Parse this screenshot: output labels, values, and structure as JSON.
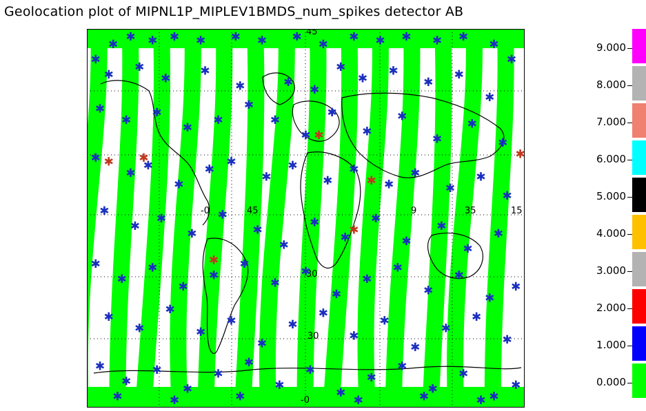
{
  "title": "Geolocation plot of MIPNL1P_MIPLEV1BMDS_num_spikes detector AB",
  "map": {
    "frame_color": "#000000",
    "background": "#ffffff",
    "track_color": "#00ff00",
    "spike_low_color": "#1a2fbf",
    "spike_high_color": "#c0381c",
    "grid_labels": [
      "45",
      "-0",
      "45",
      "9",
      "35",
      "15",
      "30",
      "30",
      "-0"
    ],
    "tracks_count": 14,
    "marker_symbol": "✱",
    "marks_low": [
      [
        0.02,
        0.08
      ],
      [
        0.06,
        0.04
      ],
      [
        0.1,
        0.02
      ],
      [
        0.15,
        0.03
      ],
      [
        0.2,
        0.02
      ],
      [
        0.26,
        0.03
      ],
      [
        0.34,
        0.02
      ],
      [
        0.4,
        0.03
      ],
      [
        0.48,
        0.02
      ],
      [
        0.54,
        0.04
      ],
      [
        0.61,
        0.02
      ],
      [
        0.67,
        0.03
      ],
      [
        0.73,
        0.02
      ],
      [
        0.8,
        0.03
      ],
      [
        0.86,
        0.02
      ],
      [
        0.93,
        0.04
      ],
      [
        0.97,
        0.08
      ],
      [
        0.05,
        0.12
      ],
      [
        0.12,
        0.1
      ],
      [
        0.18,
        0.13
      ],
      [
        0.27,
        0.11
      ],
      [
        0.35,
        0.15
      ],
      [
        0.46,
        0.14
      ],
      [
        0.52,
        0.16
      ],
      [
        0.58,
        0.1
      ],
      [
        0.63,
        0.13
      ],
      [
        0.7,
        0.11
      ],
      [
        0.78,
        0.14
      ],
      [
        0.85,
        0.12
      ],
      [
        0.92,
        0.18
      ],
      [
        0.03,
        0.21
      ],
      [
        0.09,
        0.24
      ],
      [
        0.16,
        0.22
      ],
      [
        0.23,
        0.26
      ],
      [
        0.3,
        0.24
      ],
      [
        0.37,
        0.2
      ],
      [
        0.43,
        0.24
      ],
      [
        0.5,
        0.28
      ],
      [
        0.56,
        0.22
      ],
      [
        0.64,
        0.27
      ],
      [
        0.72,
        0.23
      ],
      [
        0.8,
        0.29
      ],
      [
        0.88,
        0.25
      ],
      [
        0.95,
        0.3
      ],
      [
        0.02,
        0.34
      ],
      [
        0.1,
        0.38
      ],
      [
        0.14,
        0.36
      ],
      [
        0.21,
        0.41
      ],
      [
        0.28,
        0.37
      ],
      [
        0.33,
        0.35
      ],
      [
        0.41,
        0.39
      ],
      [
        0.47,
        0.36
      ],
      [
        0.55,
        0.4
      ],
      [
        0.61,
        0.37
      ],
      [
        0.69,
        0.41
      ],
      [
        0.75,
        0.38
      ],
      [
        0.83,
        0.42
      ],
      [
        0.9,
        0.39
      ],
      [
        0.96,
        0.44
      ],
      [
        0.04,
        0.48
      ],
      [
        0.11,
        0.52
      ],
      [
        0.17,
        0.5
      ],
      [
        0.24,
        0.54
      ],
      [
        0.31,
        0.49
      ],
      [
        0.39,
        0.53
      ],
      [
        0.45,
        0.57
      ],
      [
        0.52,
        0.51
      ],
      [
        0.59,
        0.55
      ],
      [
        0.66,
        0.5
      ],
      [
        0.73,
        0.56
      ],
      [
        0.81,
        0.52
      ],
      [
        0.87,
        0.58
      ],
      [
        0.94,
        0.54
      ],
      [
        0.02,
        0.62
      ],
      [
        0.08,
        0.66
      ],
      [
        0.15,
        0.63
      ],
      [
        0.22,
        0.68
      ],
      [
        0.29,
        0.65
      ],
      [
        0.36,
        0.62
      ],
      [
        0.43,
        0.67
      ],
      [
        0.5,
        0.64
      ],
      [
        0.57,
        0.7
      ],
      [
        0.64,
        0.66
      ],
      [
        0.71,
        0.63
      ],
      [
        0.78,
        0.69
      ],
      [
        0.85,
        0.65
      ],
      [
        0.92,
        0.71
      ],
      [
        0.98,
        0.68
      ],
      [
        0.05,
        0.76
      ],
      [
        0.12,
        0.79
      ],
      [
        0.19,
        0.74
      ],
      [
        0.26,
        0.8
      ],
      [
        0.33,
        0.77
      ],
      [
        0.4,
        0.83
      ],
      [
        0.47,
        0.78
      ],
      [
        0.54,
        0.75
      ],
      [
        0.61,
        0.81
      ],
      [
        0.68,
        0.77
      ],
      [
        0.75,
        0.84
      ],
      [
        0.82,
        0.79
      ],
      [
        0.89,
        0.76
      ],
      [
        0.96,
        0.82
      ],
      [
        0.03,
        0.89
      ],
      [
        0.09,
        0.93
      ],
      [
        0.16,
        0.9
      ],
      [
        0.23,
        0.95
      ],
      [
        0.3,
        0.91
      ],
      [
        0.37,
        0.88
      ],
      [
        0.44,
        0.94
      ],
      [
        0.51,
        0.9
      ],
      [
        0.58,
        0.96
      ],
      [
        0.65,
        0.92
      ],
      [
        0.72,
        0.89
      ],
      [
        0.79,
        0.95
      ],
      [
        0.86,
        0.91
      ],
      [
        0.93,
        0.97
      ],
      [
        0.98,
        0.94
      ],
      [
        0.07,
        0.97
      ],
      [
        0.2,
        0.98
      ],
      [
        0.35,
        0.97
      ],
      [
        0.62,
        0.98
      ],
      [
        0.77,
        0.97
      ],
      [
        0.9,
        0.98
      ]
    ],
    "marks_high": [
      [
        0.05,
        0.35
      ],
      [
        0.13,
        0.34
      ],
      [
        0.29,
        0.61
      ],
      [
        0.53,
        0.28
      ],
      [
        0.61,
        0.53
      ],
      [
        0.65,
        0.4
      ],
      [
        0.99,
        0.33
      ]
    ]
  },
  "legend": {
    "items": [
      {
        "label": "9.000",
        "color": "#ff00ff"
      },
      {
        "label": "8.000",
        "color": "#b3b3b3"
      },
      {
        "label": "7.000",
        "color": "#f08070"
      },
      {
        "label": "6.000",
        "color": "#00ffff"
      },
      {
        "label": "5.000",
        "color": "#000000"
      },
      {
        "label": "4.000",
        "color": "#ffc000"
      },
      {
        "label": "3.000",
        "color": "#b3b3b3"
      },
      {
        "label": "2.000",
        "color": "#ff0000"
      },
      {
        "label": "1.000",
        "color": "#0000ff"
      },
      {
        "label": "0.000",
        "color": "#00ff00"
      }
    ]
  }
}
